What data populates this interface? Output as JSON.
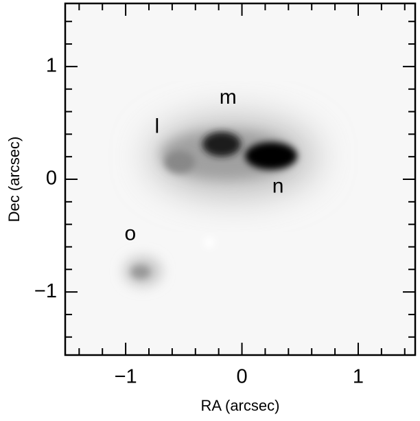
{
  "chart_data": {
    "type": "image",
    "x_label": "RA (arcsec)",
    "y_label": "Dec (arcsec)",
    "xlim": [
      -1.52,
      1.49
    ],
    "ylim": [
      -1.56,
      1.56
    ],
    "xticks": [
      {
        "value": -1,
        "label": "−1"
      },
      0,
      1
    ],
    "yticks": [
      {
        "value": -1,
        "label": "−1"
      },
      0,
      1
    ],
    "xminorticks": [
      -1.4,
      -1.2,
      -0.8,
      -0.6,
      -0.4,
      -0.2,
      0.2,
      0.4,
      0.6,
      0.8,
      1.2,
      1.4
    ],
    "yminorticks": [
      -1.4,
      -1.2,
      -0.8,
      -0.6,
      -0.4,
      -0.2,
      0.2,
      0.4,
      0.6,
      0.8,
      1.2,
      1.4
    ],
    "annotations": [
      {
        "text": "l",
        "x": -0.73,
        "y": 0.46
      },
      {
        "text": "m",
        "x": -0.12,
        "y": 0.72
      },
      {
        "text": "n",
        "x": 0.31,
        "y": -0.07
      },
      {
        "text": "o",
        "x": -0.96,
        "y": -0.49
      }
    ]
  }
}
